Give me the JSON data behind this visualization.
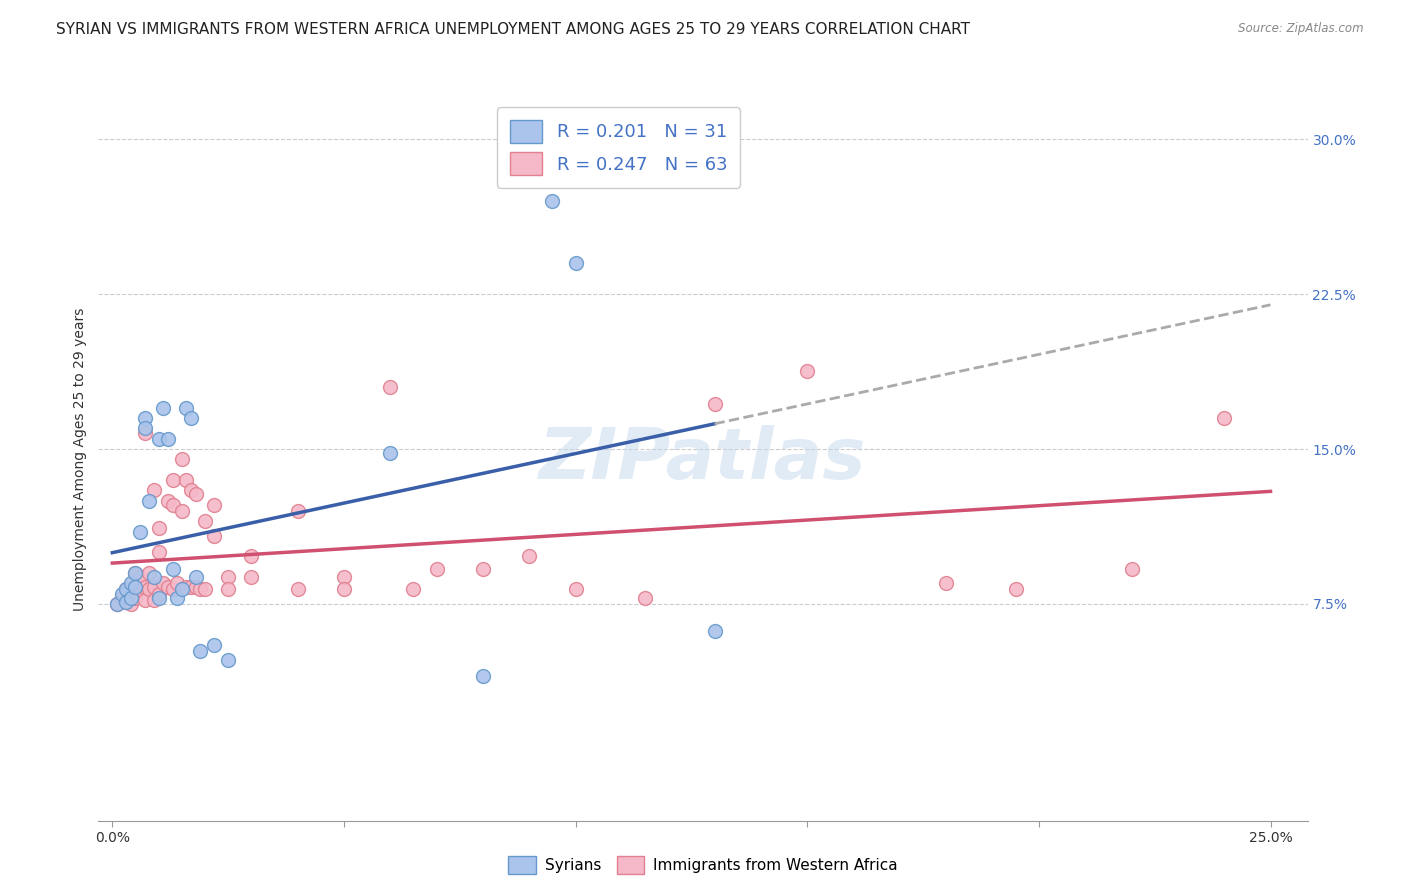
{
  "title": "SYRIAN VS IMMIGRANTS FROM WESTERN AFRICA UNEMPLOYMENT AMONG AGES 25 TO 29 YEARS CORRELATION CHART",
  "source": "Source: ZipAtlas.com",
  "ylabel": "Unemployment Among Ages 25 to 29 years",
  "xlim": [
    -0.003,
    0.258
  ],
  "ylim": [
    -0.03,
    0.32
  ],
  "xticks": [
    0.0,
    0.05,
    0.1,
    0.15,
    0.2,
    0.25
  ],
  "xticklabels": [
    "0.0%",
    "",
    "",
    "",
    "",
    "25.0%"
  ],
  "ytick_right": [
    0.075,
    0.15,
    0.225,
    0.3
  ],
  "ytick_right_labels": [
    "7.5%",
    "15.0%",
    "22.5%",
    "30.0%"
  ],
  "syrian_color": "#aac4eb",
  "western_africa_color": "#f5b8c8",
  "syrian_line_color": "#3a5fa8",
  "western_africa_line_color": "#d05070",
  "syrian_edge_color": "#6699cc",
  "western_africa_edge_color": "#e08090",
  "R_syrian": 0.201,
  "N_syrian": 31,
  "R_western": 0.247,
  "N_western": 63,
  "watermark": "ZIPatlas",
  "title_fontsize": 11,
  "label_fontsize": 10,
  "tick_fontsize": 10,
  "marker_size": 100,
  "syrian_x": [
    0.001,
    0.002,
    0.003,
    0.003,
    0.004,
    0.004,
    0.005,
    0.005,
    0.006,
    0.007,
    0.007,
    0.008,
    0.009,
    0.01,
    0.01,
    0.011,
    0.012,
    0.013,
    0.014,
    0.015,
    0.016,
    0.017,
    0.018,
    0.019,
    0.022,
    0.025,
    0.06,
    0.08,
    0.095,
    0.1,
    0.13
  ],
  "syrian_y": [
    0.075,
    0.08,
    0.082,
    0.076,
    0.085,
    0.078,
    0.09,
    0.083,
    0.11,
    0.165,
    0.16,
    0.125,
    0.088,
    0.155,
    0.078,
    0.17,
    0.155,
    0.092,
    0.078,
    0.082,
    0.17,
    0.165,
    0.088,
    0.052,
    0.055,
    0.048,
    0.148,
    0.04,
    0.27,
    0.24,
    0.062
  ],
  "wa_x": [
    0.001,
    0.002,
    0.003,
    0.003,
    0.004,
    0.004,
    0.005,
    0.005,
    0.005,
    0.006,
    0.006,
    0.007,
    0.007,
    0.007,
    0.008,
    0.008,
    0.009,
    0.009,
    0.009,
    0.01,
    0.01,
    0.01,
    0.011,
    0.012,
    0.012,
    0.013,
    0.013,
    0.013,
    0.014,
    0.015,
    0.015,
    0.016,
    0.016,
    0.017,
    0.017,
    0.018,
    0.018,
    0.019,
    0.02,
    0.02,
    0.022,
    0.022,
    0.025,
    0.025,
    0.03,
    0.03,
    0.04,
    0.04,
    0.05,
    0.05,
    0.06,
    0.065,
    0.07,
    0.08,
    0.09,
    0.1,
    0.115,
    0.13,
    0.15,
    0.18,
    0.195,
    0.22,
    0.24
  ],
  "wa_y": [
    0.075,
    0.078,
    0.082,
    0.076,
    0.08,
    0.075,
    0.09,
    0.083,
    0.078,
    0.088,
    0.082,
    0.158,
    0.083,
    0.077,
    0.09,
    0.082,
    0.13,
    0.083,
    0.077,
    0.112,
    0.1,
    0.08,
    0.085,
    0.125,
    0.083,
    0.135,
    0.123,
    0.082,
    0.085,
    0.145,
    0.12,
    0.135,
    0.083,
    0.13,
    0.083,
    0.128,
    0.083,
    0.082,
    0.115,
    0.082,
    0.123,
    0.108,
    0.088,
    0.082,
    0.098,
    0.088,
    0.12,
    0.082,
    0.088,
    0.082,
    0.18,
    0.082,
    0.092,
    0.092,
    0.098,
    0.082,
    0.078,
    0.172,
    0.188,
    0.085,
    0.082,
    0.092,
    0.165
  ]
}
